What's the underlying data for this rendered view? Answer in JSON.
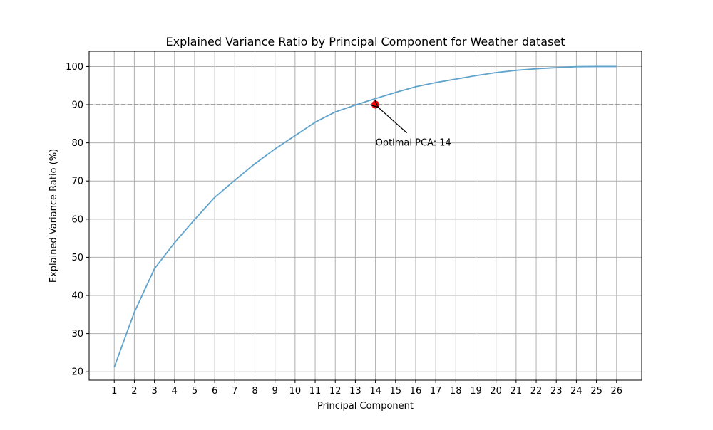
{
  "chart_data": {
    "type": "line",
    "title": "Explained Variance Ratio by Principal Component for Weather dataset",
    "xlabel": "Principal Component",
    "ylabel": "Explained Variance Ratio (%)",
    "x": [
      1,
      2,
      3,
      4,
      5,
      6,
      7,
      8,
      9,
      10,
      11,
      12,
      13,
      14,
      15,
      16,
      17,
      18,
      19,
      20,
      21,
      22,
      23,
      24,
      25,
      26
    ],
    "series": [
      {
        "values": [
          21.2,
          35.6,
          47.0,
          53.8,
          59.9,
          65.7,
          70.2,
          74.5,
          78.4,
          81.9,
          85.4,
          88.1,
          89.9,
          91.6,
          93.2,
          94.7,
          95.8,
          96.7,
          97.6,
          98.4,
          99.0,
          99.4,
          99.7,
          99.95,
          100.0,
          100.0
        ],
        "color": "#5fa2cc"
      }
    ],
    "xlim": [
      -0.25,
      27.25
    ],
    "ylim": [
      17.8,
      104.0
    ],
    "xticks": [
      "1",
      "2",
      "3",
      "4",
      "5",
      "6",
      "7",
      "8",
      "9",
      "10",
      "11",
      "12",
      "13",
      "14",
      "15",
      "16",
      "17",
      "18",
      "19",
      "20",
      "21",
      "22",
      "23",
      "24",
      "25",
      "26"
    ],
    "yticks": [
      "20",
      "30",
      "40",
      "50",
      "60",
      "70",
      "80",
      "90",
      "100"
    ],
    "grid": true,
    "threshold": {
      "value": 90,
      "color": "#808080",
      "style": "dashed"
    },
    "optimal_point": {
      "x": 14,
      "y": 90,
      "color": "#ff0000"
    },
    "annotation": {
      "text": "Optimal PCA: 14",
      "x": 14,
      "y": 80
    }
  }
}
